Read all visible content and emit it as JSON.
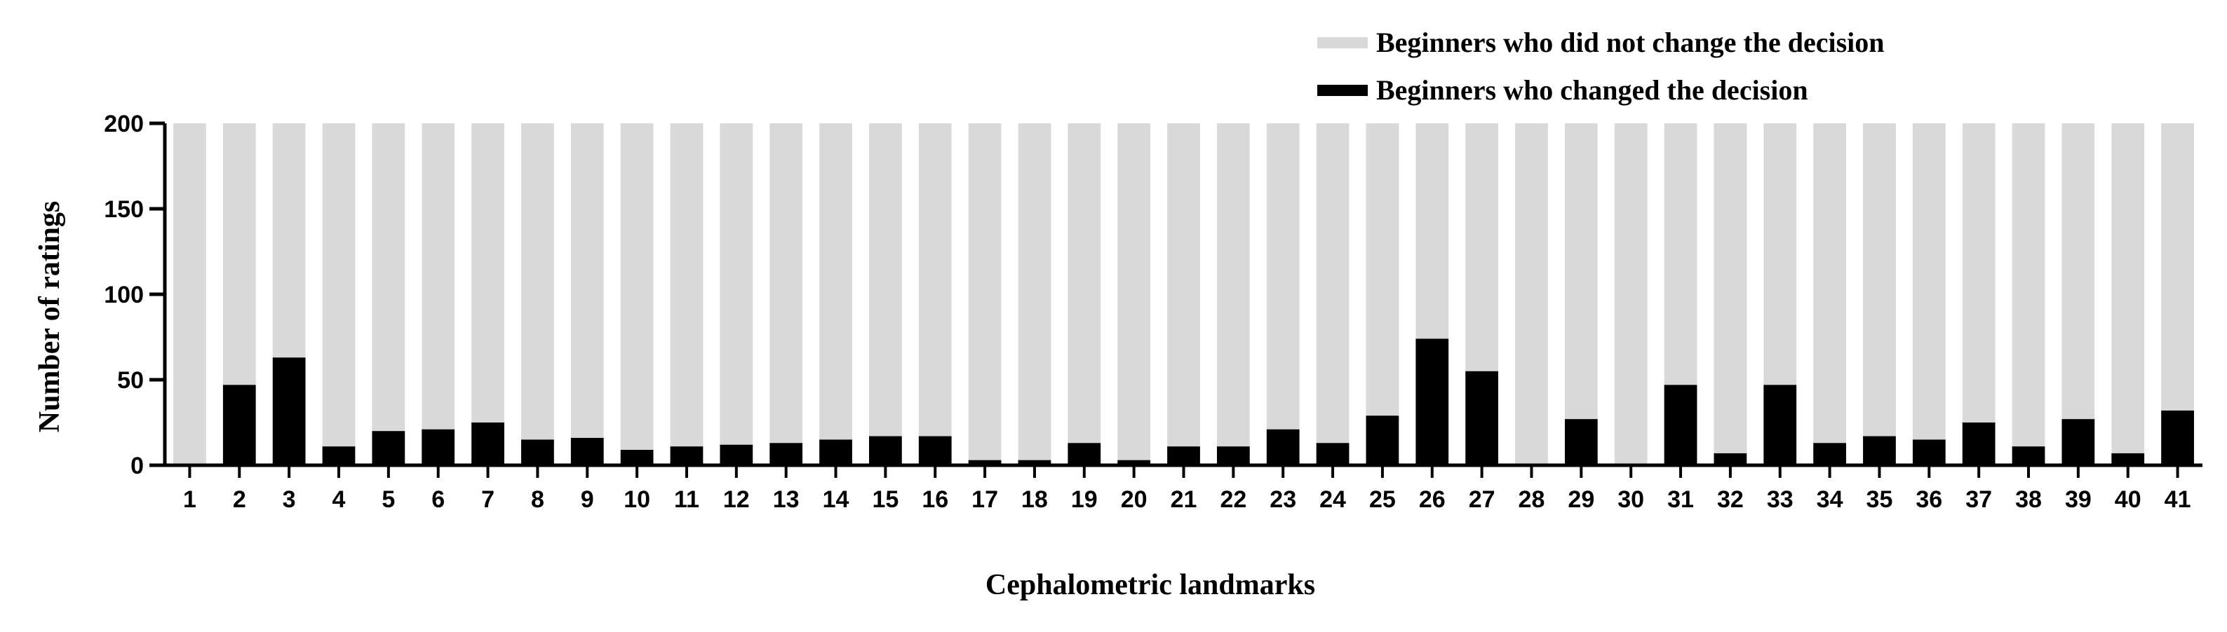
{
  "chart_data": {
    "type": "bar",
    "stacked": true,
    "xlabel": "Cephalometric landmarks",
    "ylabel": "Number of ratings",
    "ylim": [
      0,
      200
    ],
    "yticks": [
      0,
      50,
      100,
      150,
      200
    ],
    "categories": [
      "1",
      "2",
      "3",
      "4",
      "5",
      "6",
      "7",
      "8",
      "9",
      "10",
      "11",
      "12",
      "13",
      "14",
      "15",
      "16",
      "17",
      "18",
      "19",
      "20",
      "21",
      "22",
      "23",
      "24",
      "25",
      "26",
      "27",
      "28",
      "29",
      "30",
      "31",
      "32",
      "33",
      "34",
      "35",
      "36",
      "37",
      "38",
      "39",
      "40",
      "41"
    ],
    "total": 200,
    "series": [
      {
        "name": "Beginners who changed the decision",
        "color": "#000000",
        "values": [
          0,
          47,
          63,
          11,
          20,
          21,
          25,
          15,
          16,
          9,
          11,
          12,
          13,
          15,
          17,
          17,
          3,
          3,
          13,
          3,
          11,
          11,
          21,
          13,
          29,
          74,
          55,
          0,
          27,
          0,
          47,
          7,
          47,
          13,
          17,
          15,
          25,
          11,
          27,
          7,
          32
        ]
      },
      {
        "name": "Beginners who did not change the decision",
        "color": "#d9d9d9",
        "values": [
          200,
          153,
          137,
          189,
          180,
          179,
          175,
          185,
          184,
          191,
          189,
          188,
          187,
          185,
          183,
          183,
          197,
          197,
          187,
          197,
          189,
          189,
          179,
          187,
          171,
          126,
          145,
          200,
          173,
          200,
          153,
          193,
          153,
          187,
          183,
          185,
          175,
          189,
          173,
          193,
          168
        ]
      }
    ],
    "legend_position": "top-right"
  }
}
